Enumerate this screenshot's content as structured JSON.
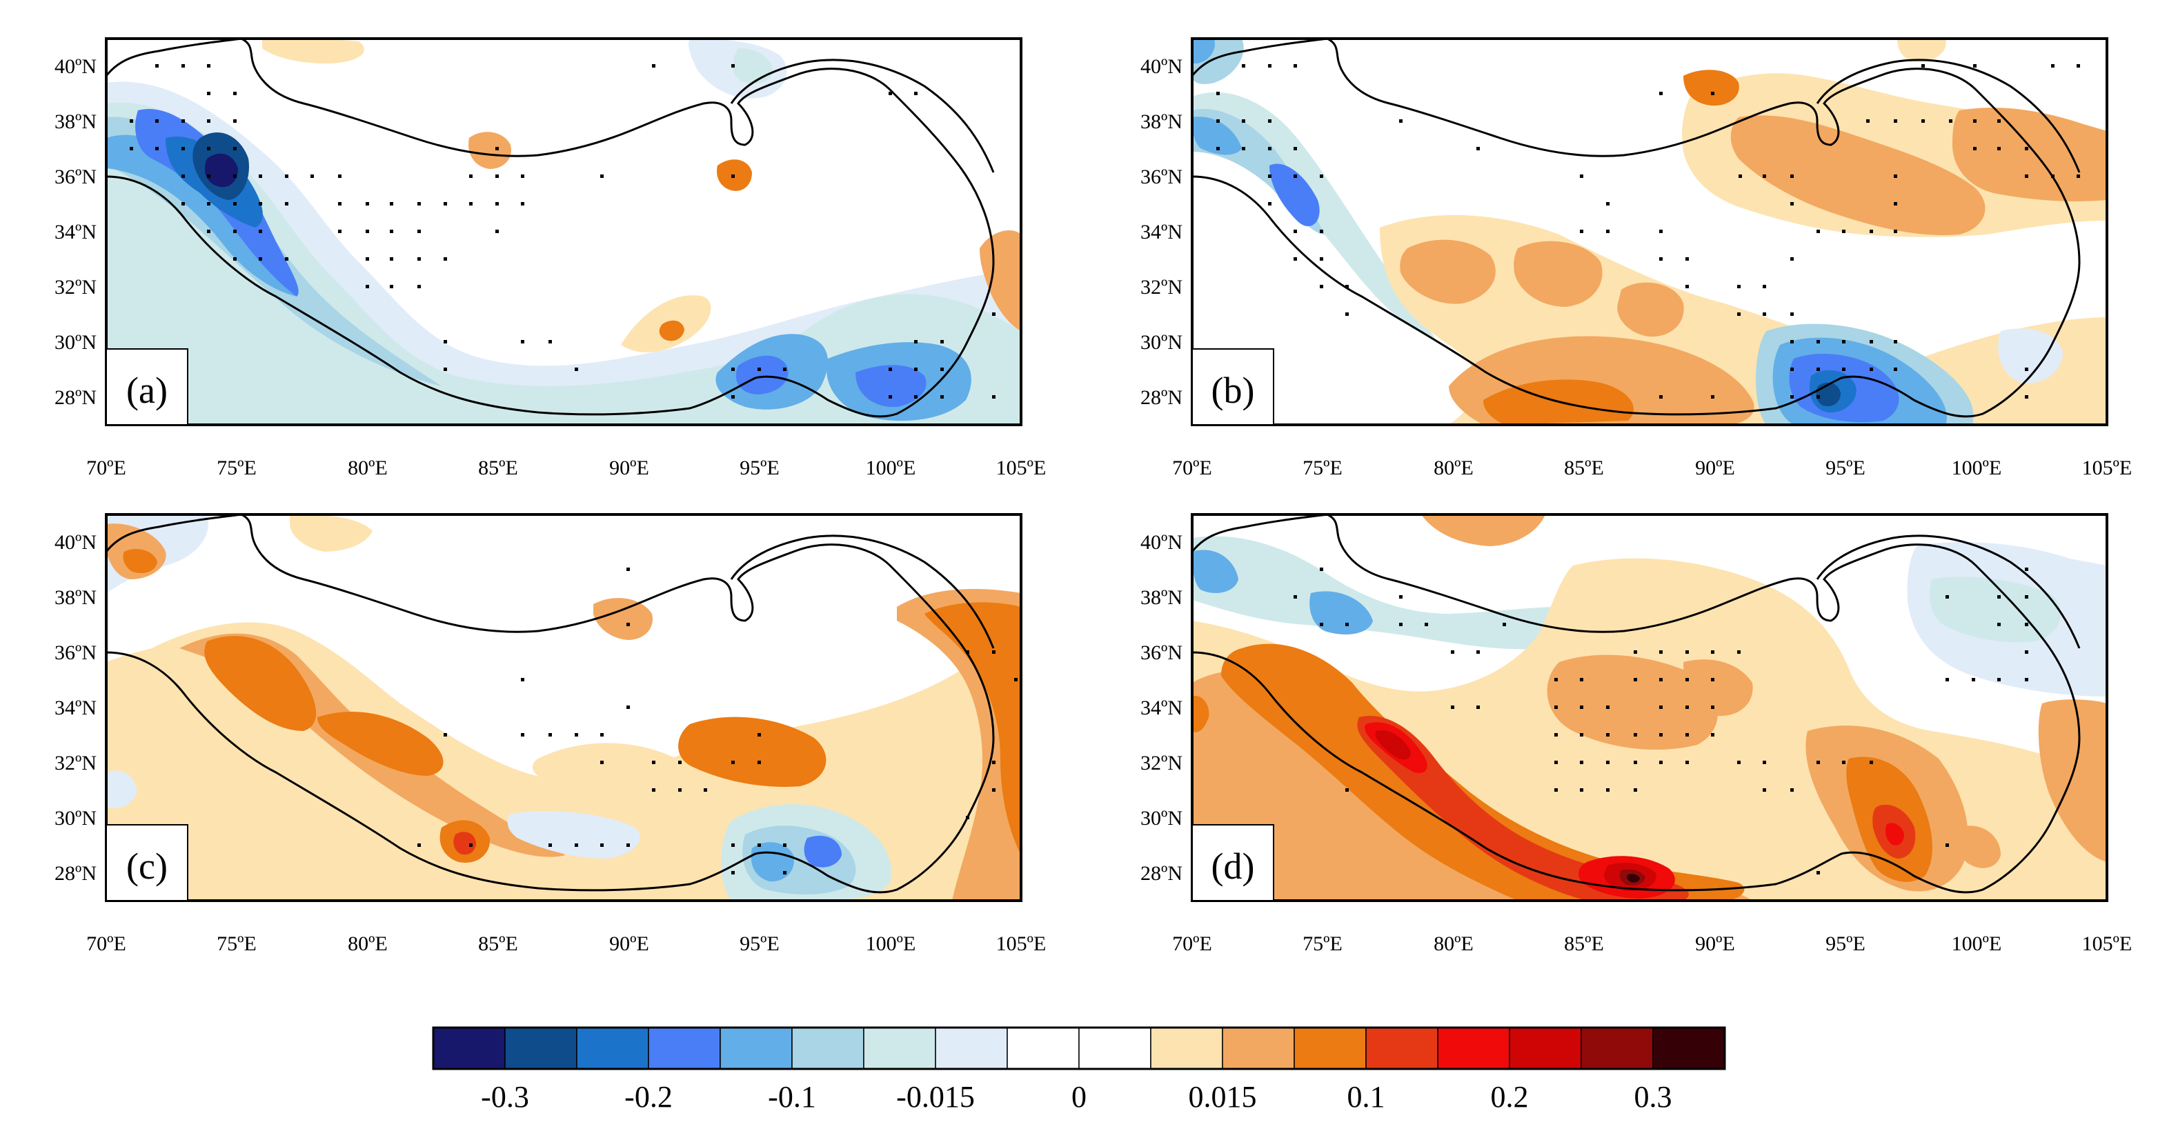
{
  "figure": {
    "panels": [
      {
        "id": "a",
        "label": "(a)"
      },
      {
        "id": "b",
        "label": "(b)"
      },
      {
        "id": "c",
        "label": "(c)"
      },
      {
        "id": "d",
        "label": "(d)"
      }
    ],
    "lon_ticks": [
      "70ºE",
      "75ºE",
      "80ºE",
      "85ºE",
      "90ºE",
      "95ºE",
      "100ºE",
      "105ºE"
    ],
    "lat_ticks": [
      "40ºN",
      "38ºN",
      "36ºN",
      "34ºN",
      "32ºN",
      "30ºN",
      "28ºN"
    ],
    "lon_range": [
      70,
      105
    ],
    "lat_range": [
      27,
      41
    ]
  },
  "colorbar": {
    "colors": [
      "#17176b",
      "#0f4c8c",
      "#1b74c9",
      "#4a7ef7",
      "#62aee8",
      "#a9d5e6",
      "#cfe9ea",
      "#e1ecf9",
      "#ffffff",
      "#ffffff",
      "#fde3b0",
      "#f2a860",
      "#eb7b12",
      "#e53915",
      "#f00a0a",
      "#cf0505",
      "#900a0a",
      "#360007"
    ],
    "labels": [
      "-0.3",
      "-0.2",
      "-0.1",
      "-0.015",
      "0",
      "0.015",
      "0.1",
      "0.2",
      "0.3"
    ]
  }
}
